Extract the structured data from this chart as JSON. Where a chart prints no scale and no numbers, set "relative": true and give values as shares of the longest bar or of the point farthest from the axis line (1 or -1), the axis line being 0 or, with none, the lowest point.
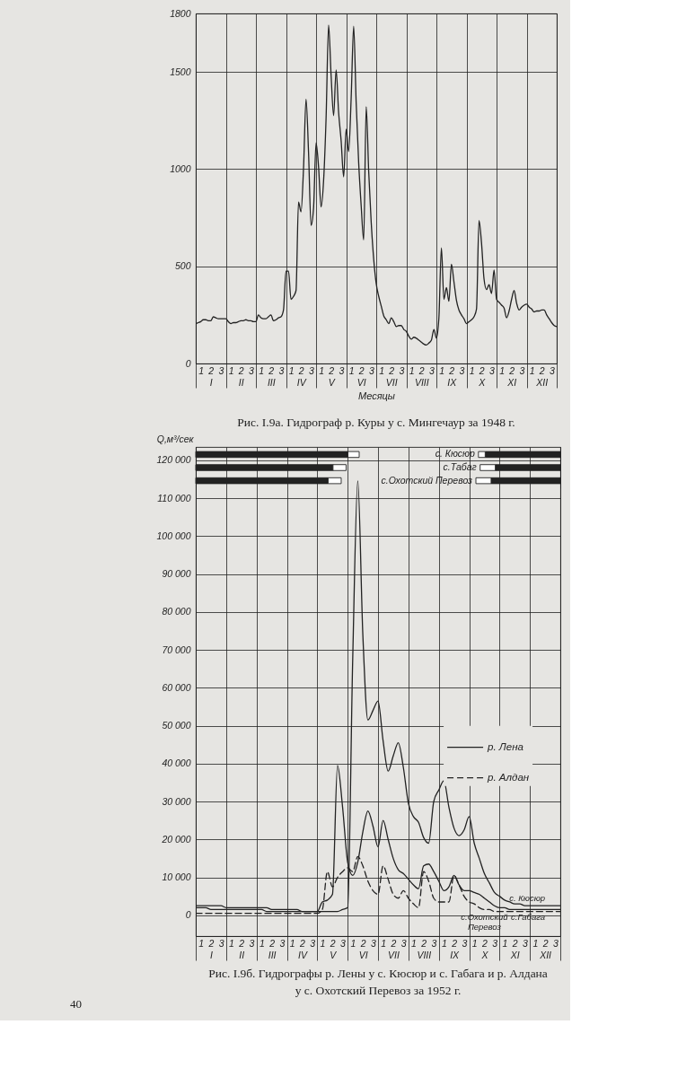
{
  "chart_data": [
    {
      "type": "line",
      "title": "Рис. I.9а. Гидрограф р. Куры у с. Мингечаур за 1948 г.",
      "xlabel": "Месяцы",
      "color": "#222222",
      "categories": [
        null,
        null,
        "1",
        null,
        null,
        null,
        "2\nI",
        null,
        null,
        null,
        "3",
        null,
        null,
        null,
        "1",
        null,
        null,
        null,
        "2\nII",
        null,
        null,
        null,
        "3",
        null,
        null,
        null,
        "1",
        null,
        null,
        null,
        "2\nIII",
        null,
        null,
        null,
        "3",
        null,
        null,
        null,
        "1",
        null,
        null,
        null,
        "2\nIV",
        null,
        null,
        null,
        "3",
        null,
        null,
        null,
        "1",
        null,
        null,
        null,
        "2\nV",
        null,
        null,
        null,
        "3",
        null,
        null,
        null,
        "1",
        null,
        null,
        null,
        "2\nVI",
        null,
        null,
        null,
        "3",
        null,
        null,
        null,
        "1",
        null,
        null,
        null,
        "2\nVII",
        null,
        null,
        null,
        "3",
        null,
        null,
        null,
        "1",
        null,
        null,
        null,
        "2\nVIII",
        null,
        null,
        null,
        "3",
        null,
        null,
        null,
        "1",
        null,
        null,
        null,
        "2\nIX",
        null,
        null,
        null,
        "3",
        null,
        null,
        null,
        "1",
        null,
        null,
        null,
        "2\nX",
        null,
        null,
        null,
        "3",
        null,
        null,
        null,
        "1",
        null,
        null,
        null,
        "2\nXI",
        null,
        null,
        null,
        "3",
        null,
        null,
        null,
        "1",
        null,
        null,
        null,
        "2\nXII",
        null,
        null,
        null,
        "3",
        null,
        null
      ],
      "values": [
        205,
        210,
        215,
        225,
        225,
        220,
        220,
        240,
        235,
        230,
        230,
        230,
        230,
        215,
        205,
        210,
        210,
        215,
        220,
        220,
        225,
        220,
        220,
        215,
        215,
        250,
        235,
        230,
        230,
        240,
        250,
        220,
        225,
        235,
        240,
        275,
        475,
        475,
        330,
        345,
        375,
        830,
        780,
        1005,
        1360,
        1085,
        710,
        800,
        1135,
        1010,
        805,
        940,
        1265,
        1740,
        1480,
        1275,
        1510,
        1290,
        1145,
        960,
        1205,
        1090,
        1365,
        1735,
        1340,
        1030,
        810,
        635,
        1320,
        985,
        725,
        535,
        410,
        345,
        295,
        245,
        225,
        205,
        235,
        215,
        190,
        195,
        195,
        175,
        165,
        140,
        125,
        135,
        130,
        120,
        110,
        100,
        95,
        105,
        120,
        175,
        130,
        235,
        595,
        330,
        390,
        320,
        510,
        420,
        325,
        275,
        250,
        230,
        205,
        215,
        225,
        240,
        280,
        735,
        620,
        435,
        380,
        405,
        360,
        480,
        330,
        315,
        300,
        285,
        235,
        270,
        330,
        375,
        310,
        275,
        290,
        300,
        305,
        290,
        280,
        265,
        270,
        270,
        275,
        275,
        250,
        230,
        210,
        195,
        190
      ],
      "ylim": [
        0,
        1800
      ],
      "yticks": [
        0,
        500,
        1000,
        1500,
        1800
      ],
      "grid": true
    },
    {
      "type": "bar",
      "orientation": "horizontal",
      "relative": true,
      "stacked": true,
      "categories": [
        null,
        null,
        null
      ],
      "tick_labels": false,
      "series": [
        {
          "color": "#222222",
          "values": [
            0.93,
            0.84,
            0.81
          ]
        },
        {
          "color": "#ffffff",
          "values": [
            0.07,
            0.08,
            0.08
          ]
        }
      ]
    },
    {
      "type": "bar",
      "orientation": "horizontal",
      "relative": true,
      "stacked": true,
      "categories": [
        "с. Кюсюр",
        "с.Табаг",
        "с.Охотский Перевоз"
      ],
      "tick_labels": "y",
      "series": [
        {
          "color": "#222222",
          "values": [
            -0.89,
            -0.77,
            -0.82
          ]
        },
        {
          "color": "#ffffff",
          "values": [
            -0.08,
            -0.18,
            -0.18
          ]
        }
      ]
    },
    {
      "type": "line",
      "title": "Рис. I.9б. Гидрографы р. Лены у с. Кюсюр и с. Габага и р. Алдана у с. Охотский Перевоз за 1952 г.",
      "ylabel": "Q,м³/сек",
      "ylim": [
        -5500,
        123500
      ],
      "grid": true,
      "legend": "right",
      "yticks": [
        0,
        {
          "value": 10000,
          "label": "10 000"
        },
        {
          "value": 20000,
          "label": "20 000"
        },
        {
          "value": 30000,
          "label": "30 000"
        },
        {
          "value": 40000,
          "label": "40 000"
        },
        {
          "value": 50000,
          "label": "50 000"
        },
        {
          "value": 60000,
          "label": "60 000"
        },
        {
          "value": 70000,
          "label": "70 000"
        },
        {
          "value": 80000,
          "label": "80 000"
        },
        {
          "value": 90000,
          "label": "90 000"
        },
        {
          "value": 100000,
          "label": "100 000"
        },
        {
          "value": 110000,
          "label": "110 000"
        },
        {
          "value": 120000,
          "label": "120 000"
        }
      ],
      "categories": [
        null,
        "1",
        null,
        "2\nI",
        null,
        "3",
        null,
        "1",
        null,
        "2\nII",
        null,
        "3",
        null,
        "1",
        null,
        "2\nIII",
        null,
        "3",
        null,
        "1",
        null,
        "2\nIV",
        null,
        "3",
        null,
        "1",
        null,
        "2\nV",
        null,
        "3",
        null,
        "1",
        null,
        "2\nVI",
        null,
        "3",
        null,
        "1",
        null,
        "2\nVII",
        null,
        "3",
        null,
        "1",
        null,
        "2\nVIII",
        null,
        "3",
        null,
        "1",
        null,
        "2\nIX",
        null,
        "3",
        null,
        "1",
        null,
        "2\nX",
        null,
        "3",
        null,
        "1",
        null,
        "2\nXI",
        null,
        "3",
        null,
        "1",
        null,
        "2\nXII",
        null,
        "3",
        null
      ],
      "series": [
        {
          "name": "р. Лена",
          "color": "#222222",
          "line_style": "solid",
          "values": [
            2500,
            2500,
            2500,
            2500,
            2500,
            2500,
            2000,
            2000,
            2000,
            2000,
            2000,
            2000,
            2000,
            2000,
            2000,
            1500,
            1500,
            1500,
            1500,
            1500,
            1500,
            1000,
            1000,
            1000,
            1000,
            1000,
            1000,
            1000,
            1000,
            1500,
            2000,
            67500,
            114500,
            74000,
            51500,
            54000,
            56500,
            46000,
            38000,
            42000,
            45500,
            39000,
            29500,
            26000,
            24500,
            20500,
            19000,
            30000,
            33000,
            35500,
            28500,
            23000,
            21000,
            22500,
            26000,
            19000,
            15000,
            11000,
            8500,
            6000,
            5000,
            4000,
            3500,
            3000,
            3000,
            2500,
            2500,
            2500,
            2500,
            2500,
            2500,
            2500,
            2500
          ]
        },
        {
          "color": "#222222",
          "line_style": "solid",
          "values": [
            2000,
            2000,
            2000,
            1500,
            1500,
            1500,
            1500,
            1500,
            1500,
            1500,
            1500,
            1500,
            1500,
            1500,
            1000,
            1000,
            1000,
            1000,
            1000,
            1000,
            1000,
            1000,
            1000,
            1000,
            1000,
            3500,
            4000,
            5500,
            39500,
            28500,
            14000,
            10500,
            14000,
            22000,
            27500,
            23500,
            18000,
            25000,
            20000,
            15000,
            12000,
            11000,
            9500,
            8000,
            7000,
            13000,
            13500,
            11500,
            9000,
            6500,
            7500,
            10500,
            8000,
            6500,
            6500,
            6000,
            5500,
            4500,
            3500,
            2500,
            2000,
            2000,
            1500,
            1500,
            1500,
            1500,
            1500,
            1500,
            1500,
            1500,
            1500,
            1500,
            1500
          ]
        },
        {
          "name": "р. Алдан",
          "color": "#222222",
          "line_style": "dashed",
          "values": [
            500,
            500,
            500,
            500,
            500,
            500,
            500,
            500,
            500,
            500,
            500,
            500,
            500,
            500,
            500,
            500,
            500,
            500,
            500,
            500,
            500,
            500,
            500,
            500,
            500,
            1500,
            11500,
            7500,
            10000,
            11500,
            12500,
            11500,
            15500,
            13000,
            9000,
            6500,
            5500,
            13000,
            9500,
            5500,
            4500,
            6500,
            4500,
            3000,
            2000,
            11500,
            9000,
            4500,
            3500,
            3500,
            3500,
            10500,
            8000,
            5000,
            3500,
            3000,
            2000,
            1500,
            1500,
            1000,
            1000,
            1000,
            1000,
            1000,
            1000,
            1000,
            1000,
            1000,
            1000,
            1000,
            1000,
            1000,
            1000
          ]
        }
      ],
      "annotations": [
        {
          "text": "с. Кюсюр",
          "x": "2\nXII",
          "y": 2500
        },
        {
          "text": "с.Габага",
          "x": "2\nXII",
          "y": 1500
        },
        {
          "text": "с.Охотский\nПеревоз",
          "x": "2\nX",
          "y": 1500
        },
        "40"
      ]
    }
  ]
}
